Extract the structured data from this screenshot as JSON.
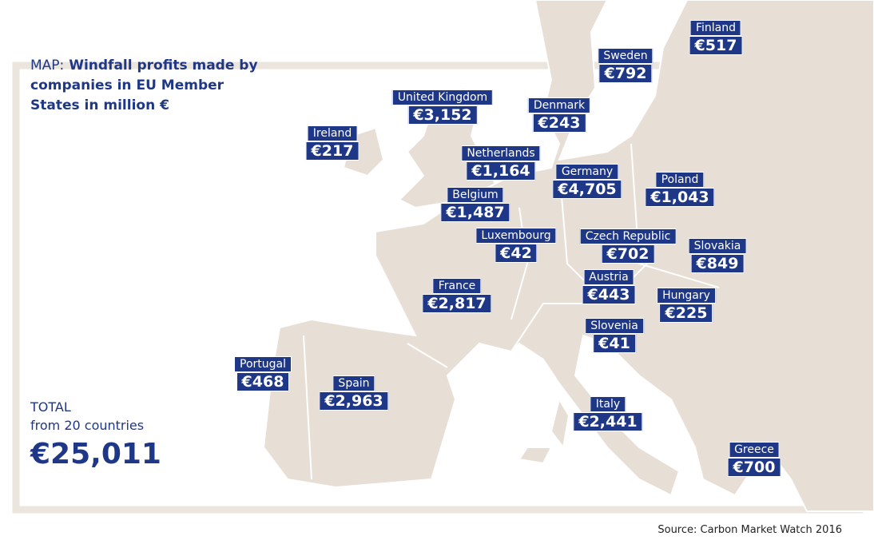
{
  "title": {
    "prefix": "MAP:",
    "text": "Windfall profits made by companies in EU Member States in million €"
  },
  "countries": [
    {
      "name": "Finland",
      "value": "€517"
    },
    {
      "name": "Sweden",
      "value": "€792"
    },
    {
      "name": "United Kingdom",
      "value": "€3,152"
    },
    {
      "name": "Denmark",
      "value": "€243"
    },
    {
      "name": "Ireland",
      "value": "€217"
    },
    {
      "name": "Netherlands",
      "value": "€1,164"
    },
    {
      "name": "Germany",
      "value": "€4,705"
    },
    {
      "name": "Poland",
      "value": "€1,043"
    },
    {
      "name": "Belgium",
      "value": "€1,487"
    },
    {
      "name": "Luxembourg",
      "value": "€42"
    },
    {
      "name": "Czech Republic",
      "value": "€702"
    },
    {
      "name": "Slovakia",
      "value": "€849"
    },
    {
      "name": "France",
      "value": "€2,817"
    },
    {
      "name": "Austria",
      "value": "€443"
    },
    {
      "name": "Hungary",
      "value": "€225"
    },
    {
      "name": "Slovenia",
      "value": "€41"
    },
    {
      "name": "Portugal",
      "value": "€468"
    },
    {
      "name": "Spain",
      "value": "€2,963"
    },
    {
      "name": "Italy",
      "value": "€2,441"
    },
    {
      "name": "Greece",
      "value": "€700"
    }
  ],
  "total": {
    "label": "TOTAL",
    "sublabel": "from 20 countries",
    "value": "€25,011"
  },
  "source": "Source: Carbon Market Watch 2016"
}
